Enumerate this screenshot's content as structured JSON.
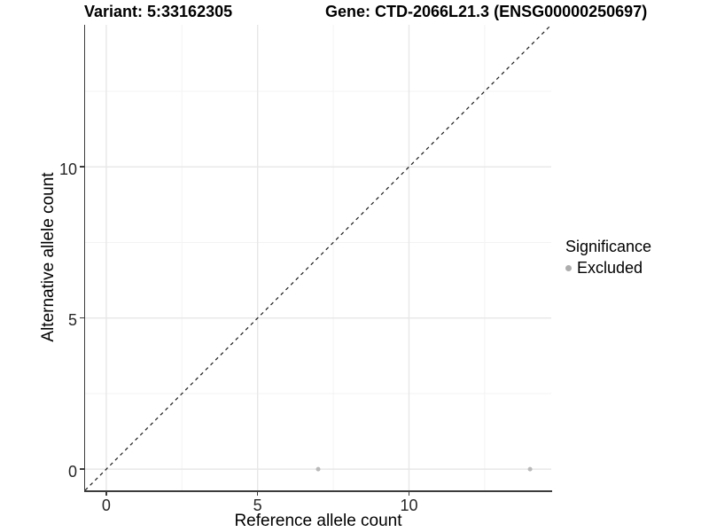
{
  "chart_data": {
    "type": "scatter",
    "title_left": "Variant: 5:33162305",
    "title_right": "Gene: CTD-2066L21.3 (ENSG00000250697)",
    "xlabel": "Reference allele count",
    "ylabel": "Alternative allele count",
    "xlim": [
      -0.7,
      14.7
    ],
    "ylim": [
      -0.7,
      14.7
    ],
    "x_ticks": [
      "0",
      "5",
      "10"
    ],
    "x_tick_values": [
      0,
      5,
      10
    ],
    "y_ticks": [
      "0",
      "5",
      "10"
    ],
    "y_tick_values": [
      0,
      5,
      10
    ],
    "grid": {
      "visible": true,
      "major": [
        0,
        5,
        10
      ],
      "minor": [
        2.5,
        7.5,
        12.5
      ]
    },
    "reference_line": {
      "type": "identity",
      "style": "dashed",
      "from": [
        -0.7,
        -0.7
      ],
      "to": [
        14.7,
        14.7
      ]
    },
    "series": [
      {
        "name": "Excluded",
        "color": "#b9b9b9",
        "points": [
          {
            "x": 7,
            "y": 0
          },
          {
            "x": 14,
            "y": 0
          }
        ]
      }
    ],
    "legend": {
      "title": "Significance",
      "position": "right",
      "items": [
        {
          "label": "Excluded",
          "color": "#adadad"
        }
      ]
    },
    "colors": {
      "background": "#ffffff",
      "grid_major": "#e7e7e7",
      "grid_minor": "#f3f3f3",
      "axis": "#3c3c3c",
      "reference_line": "#1a1a1a",
      "title_text": "#000000",
      "tick_text": "#262626"
    }
  }
}
